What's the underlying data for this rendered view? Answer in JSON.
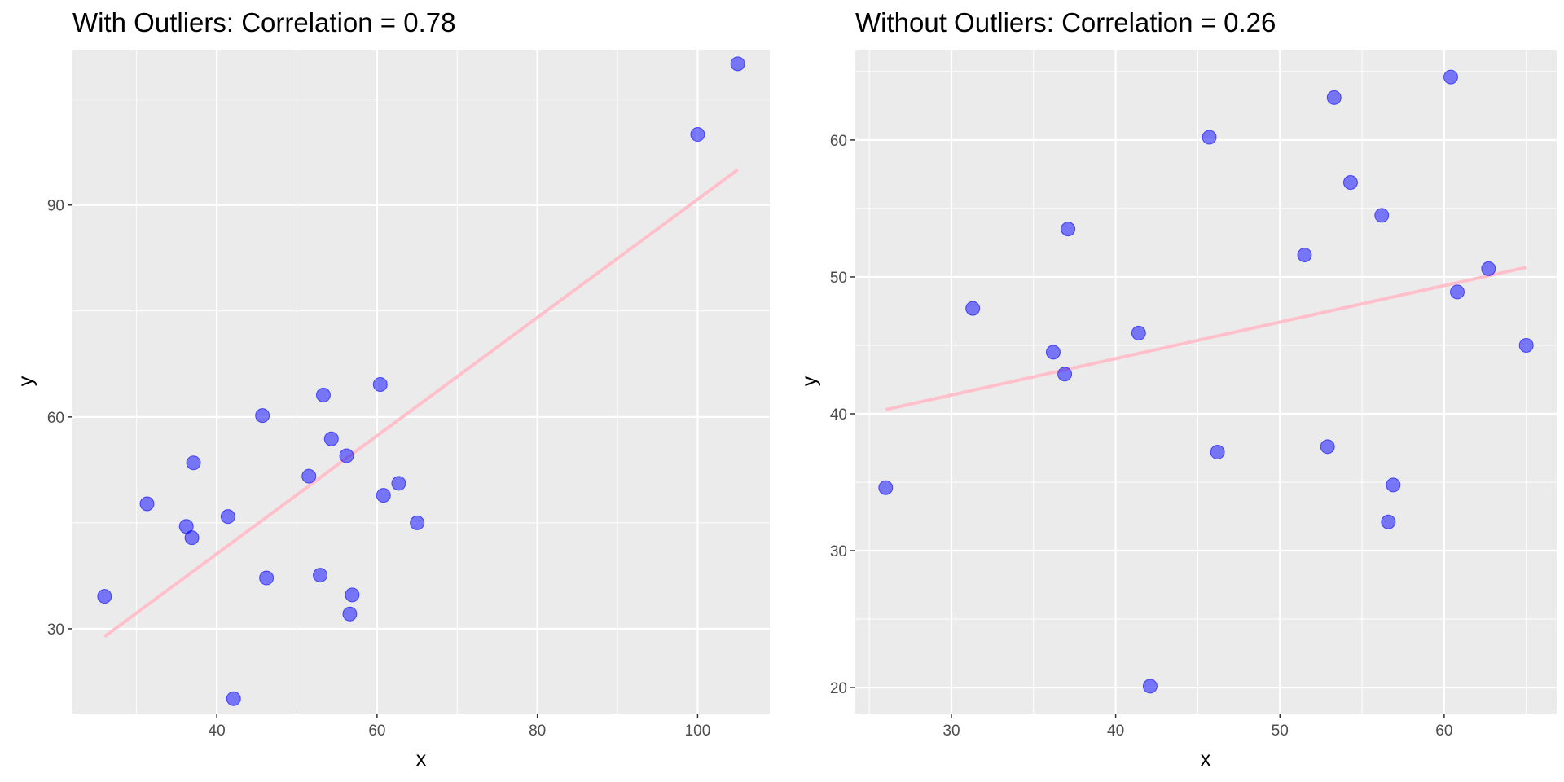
{
  "colors": {
    "panel_background": "#ebebeb",
    "grid_major": "#ffffff",
    "point_fill": "#0000ff",
    "point_fill_opacity": 0.5,
    "fit_line": "#ffc0cb",
    "tick_label": "#4d4d4d",
    "tick_mark": "#333333"
  },
  "chart_data": [
    {
      "type": "scatter",
      "title": "With Outliers: Correlation = 0.78",
      "xlabel": "x",
      "ylabel": "y",
      "xlim": [
        22,
        109
      ],
      "ylim": [
        18,
        112
      ],
      "x_ticks": [
        40,
        60,
        80,
        100
      ],
      "y_ticks": [
        30,
        60,
        90
      ],
      "x_tick_labels": [
        "40",
        "60",
        "80",
        "100"
      ],
      "y_tick_labels": [
        "30",
        "60",
        "90"
      ],
      "x_minor_ticks": [
        30,
        50,
        70,
        90
      ],
      "y_minor_ticks": [
        45,
        75,
        105
      ],
      "grid": true,
      "legend": "none",
      "points": [
        {
          "x": 26.0,
          "y": 34.6
        },
        {
          "x": 31.3,
          "y": 47.7
        },
        {
          "x": 36.2,
          "y": 44.5
        },
        {
          "x": 36.9,
          "y": 42.9
        },
        {
          "x": 37.1,
          "y": 53.5
        },
        {
          "x": 41.4,
          "y": 45.9
        },
        {
          "x": 42.1,
          "y": 20.1
        },
        {
          "x": 45.7,
          "y": 60.2
        },
        {
          "x": 46.2,
          "y": 37.2
        },
        {
          "x": 51.5,
          "y": 51.6
        },
        {
          "x": 52.9,
          "y": 37.6
        },
        {
          "x": 53.3,
          "y": 63.1
        },
        {
          "x": 54.3,
          "y": 56.9
        },
        {
          "x": 56.2,
          "y": 54.5
        },
        {
          "x": 56.6,
          "y": 32.1
        },
        {
          "x": 56.9,
          "y": 34.8
        },
        {
          "x": 60.4,
          "y": 64.6
        },
        {
          "x": 60.8,
          "y": 48.9
        },
        {
          "x": 62.7,
          "y": 50.6
        },
        {
          "x": 65.0,
          "y": 45.0
        },
        {
          "x": 100.0,
          "y": 100.0
        },
        {
          "x": 105.0,
          "y": 110.0
        }
      ],
      "fit_line": {
        "x": [
          26.0,
          105.0
        ],
        "y": [
          28.9,
          95.0
        ]
      }
    },
    {
      "type": "scatter",
      "title": "Without Outliers: Correlation = 0.26",
      "xlabel": "x",
      "ylabel": "y",
      "xlim": [
        24.15,
        66.85
      ],
      "ylim": [
        18.1,
        66.6
      ],
      "x_ticks": [
        30,
        40,
        50,
        60
      ],
      "y_ticks": [
        20,
        30,
        40,
        50,
        60
      ],
      "x_tick_labels": [
        "30",
        "40",
        "50",
        "60"
      ],
      "y_tick_labels": [
        "20",
        "30",
        "40",
        "50",
        "60"
      ],
      "x_minor_ticks": [
        25,
        35,
        45,
        55,
        65
      ],
      "y_minor_ticks": [
        25,
        35,
        45,
        55,
        65
      ],
      "grid": true,
      "legend": "none",
      "points": [
        {
          "x": 26.0,
          "y": 34.6
        },
        {
          "x": 31.3,
          "y": 47.7
        },
        {
          "x": 36.2,
          "y": 44.5
        },
        {
          "x": 36.9,
          "y": 42.9
        },
        {
          "x": 37.1,
          "y": 53.5
        },
        {
          "x": 41.4,
          "y": 45.9
        },
        {
          "x": 42.1,
          "y": 20.1
        },
        {
          "x": 45.7,
          "y": 60.2
        },
        {
          "x": 46.2,
          "y": 37.2
        },
        {
          "x": 51.5,
          "y": 51.6
        },
        {
          "x": 52.9,
          "y": 37.6
        },
        {
          "x": 53.3,
          "y": 63.1
        },
        {
          "x": 54.3,
          "y": 56.9
        },
        {
          "x": 56.2,
          "y": 54.5
        },
        {
          "x": 56.6,
          "y": 32.1
        },
        {
          "x": 56.9,
          "y": 34.8
        },
        {
          "x": 60.4,
          "y": 64.6
        },
        {
          "x": 60.8,
          "y": 48.9
        },
        {
          "x": 62.7,
          "y": 50.6
        },
        {
          "x": 65.0,
          "y": 45.0
        }
      ],
      "fit_line": {
        "x": [
          26.0,
          65.0
        ],
        "y": [
          40.3,
          50.7
        ]
      }
    }
  ]
}
